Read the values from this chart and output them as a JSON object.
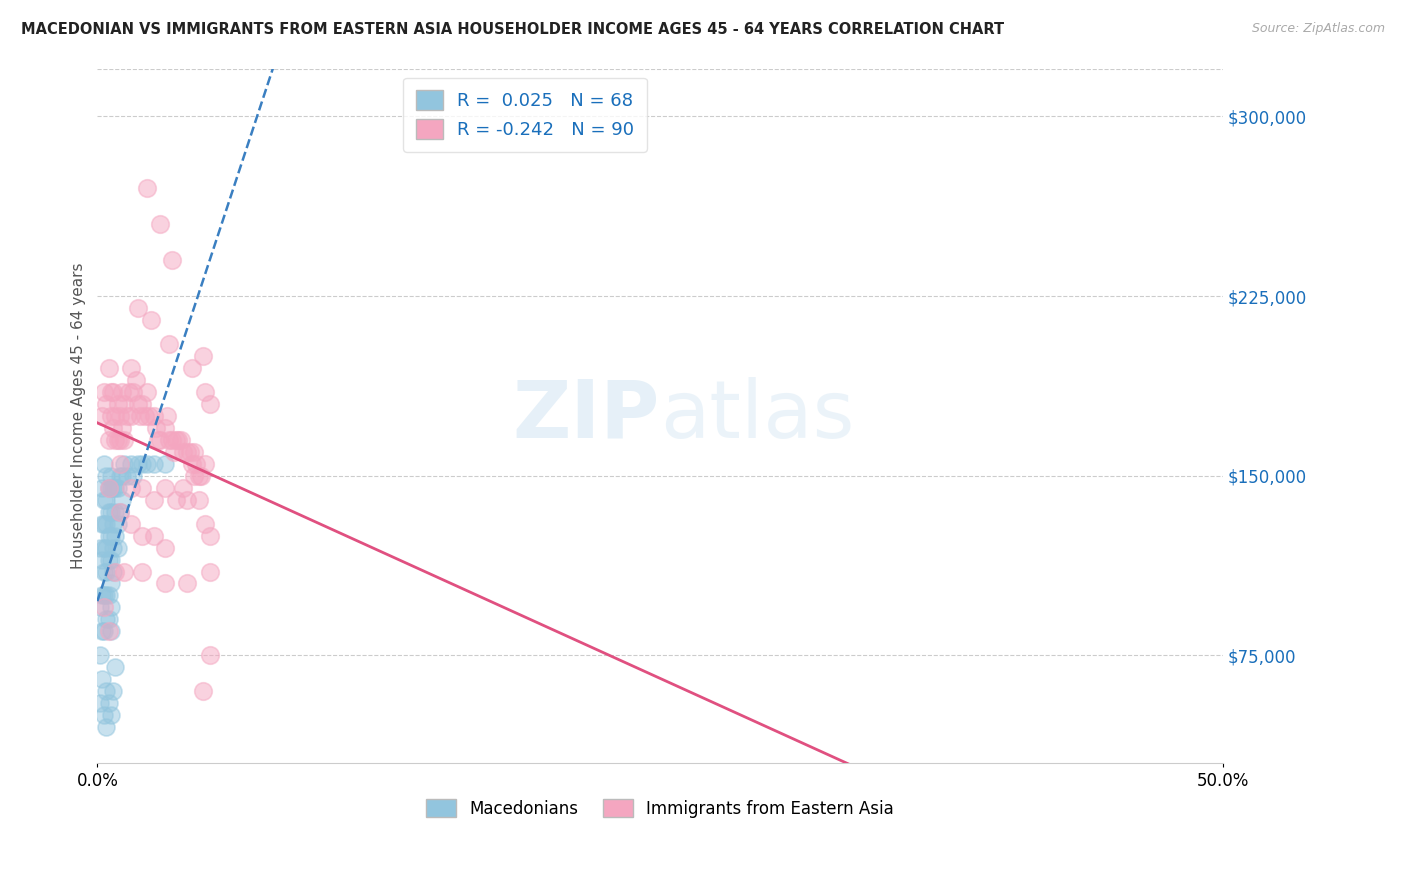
{
  "title": "MACEDONIAN VS IMMIGRANTS FROM EASTERN ASIA HOUSEHOLDER INCOME AGES 45 - 64 YEARS CORRELATION CHART",
  "source": "Source: ZipAtlas.com",
  "ylabel": "Householder Income Ages 45 - 64 years",
  "y_ticks": [
    75000,
    150000,
    225000,
    300000
  ],
  "y_tick_labels": [
    "$75,000",
    "$150,000",
    "$225,000",
    "$300,000"
  ],
  "xlim": [
    0.0,
    0.5
  ],
  "ylim": [
    30000,
    320000
  ],
  "macedonian_R": 0.025,
  "macedonian_N": 68,
  "eastern_asia_R": -0.242,
  "eastern_asia_N": 90,
  "macedonian_color": "#92c5de",
  "eastern_asia_color": "#f4a6c0",
  "macedonian_line_color": "#3a7fc1",
  "eastern_asia_line_color": "#e05080",
  "legend_R_color": "#1a6fbb",
  "background_color": "#ffffff",
  "grid_color": "#cccccc",
  "mac_x": [
    0.001,
    0.001,
    0.001,
    0.002,
    0.002,
    0.002,
    0.002,
    0.002,
    0.003,
    0.003,
    0.003,
    0.003,
    0.003,
    0.003,
    0.003,
    0.004,
    0.004,
    0.004,
    0.004,
    0.004,
    0.004,
    0.004,
    0.005,
    0.005,
    0.005,
    0.005,
    0.005,
    0.005,
    0.006,
    0.006,
    0.006,
    0.006,
    0.006,
    0.006,
    0.006,
    0.006,
    0.007,
    0.007,
    0.007,
    0.007,
    0.008,
    0.008,
    0.008,
    0.009,
    0.009,
    0.009,
    0.01,
    0.01,
    0.011,
    0.011,
    0.012,
    0.013,
    0.015,
    0.016,
    0.018,
    0.02,
    0.022,
    0.025,
    0.03,
    0.001,
    0.002,
    0.003,
    0.004,
    0.004,
    0.005,
    0.006,
    0.007,
    0.008
  ],
  "mac_y": [
    120000,
    95000,
    75000,
    145000,
    130000,
    115000,
    100000,
    85000,
    155000,
    140000,
    130000,
    120000,
    110000,
    100000,
    85000,
    150000,
    140000,
    130000,
    120000,
    110000,
    100000,
    90000,
    145000,
    135000,
    125000,
    115000,
    100000,
    90000,
    150000,
    145000,
    135000,
    125000,
    115000,
    105000,
    95000,
    85000,
    145000,
    130000,
    120000,
    110000,
    145000,
    135000,
    125000,
    145000,
    130000,
    120000,
    150000,
    135000,
    150000,
    140000,
    155000,
    150000,
    155000,
    150000,
    155000,
    155000,
    155000,
    155000,
    155000,
    55000,
    65000,
    50000,
    60000,
    45000,
    55000,
    50000,
    60000,
    70000
  ],
  "ea_x": [
    0.002,
    0.003,
    0.004,
    0.005,
    0.005,
    0.006,
    0.006,
    0.007,
    0.007,
    0.008,
    0.008,
    0.009,
    0.009,
    0.01,
    0.01,
    0.011,
    0.011,
    0.012,
    0.012,
    0.013,
    0.014,
    0.015,
    0.015,
    0.016,
    0.017,
    0.018,
    0.019,
    0.02,
    0.021,
    0.022,
    0.023,
    0.025,
    0.026,
    0.027,
    0.028,
    0.03,
    0.031,
    0.032,
    0.033,
    0.034,
    0.035,
    0.036,
    0.037,
    0.038,
    0.04,
    0.041,
    0.042,
    0.043,
    0.044,
    0.045,
    0.046,
    0.047,
    0.048,
    0.01,
    0.015,
    0.02,
    0.025,
    0.03,
    0.035,
    0.04,
    0.045,
    0.048,
    0.005,
    0.01,
    0.015,
    0.02,
    0.025,
    0.03,
    0.05,
    0.05,
    0.04,
    0.03,
    0.02,
    0.012,
    0.008,
    0.005,
    0.003,
    0.022,
    0.028,
    0.033,
    0.038,
    0.043,
    0.047,
    0.05,
    0.018,
    0.024,
    0.032,
    0.042,
    0.048,
    0.05
  ],
  "ea_y": [
    175000,
    185000,
    180000,
    195000,
    165000,
    185000,
    175000,
    170000,
    185000,
    175000,
    165000,
    180000,
    165000,
    175000,
    165000,
    185000,
    170000,
    180000,
    165000,
    175000,
    185000,
    175000,
    195000,
    185000,
    190000,
    180000,
    175000,
    180000,
    175000,
    185000,
    175000,
    175000,
    170000,
    165000,
    165000,
    170000,
    175000,
    165000,
    165000,
    160000,
    165000,
    165000,
    165000,
    160000,
    160000,
    160000,
    155000,
    160000,
    155000,
    150000,
    150000,
    200000,
    155000,
    155000,
    145000,
    145000,
    140000,
    145000,
    140000,
    140000,
    140000,
    130000,
    145000,
    135000,
    130000,
    125000,
    125000,
    120000,
    110000,
    125000,
    105000,
    105000,
    110000,
    110000,
    110000,
    85000,
    95000,
    270000,
    255000,
    240000,
    145000,
    150000,
    60000,
    75000,
    220000,
    215000,
    205000,
    195000,
    185000,
    180000
  ]
}
